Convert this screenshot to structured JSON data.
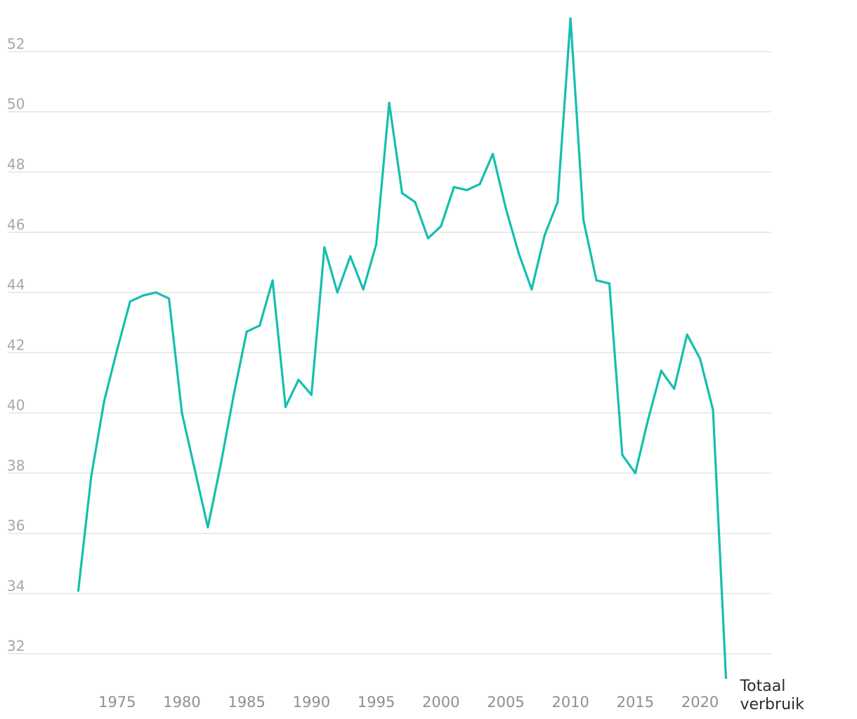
{
  "chart_data": {
    "type": "line",
    "title": "",
    "xlabel": "",
    "ylabel": "",
    "x": [
      1972,
      1973,
      1974,
      1975,
      1976,
      1977,
      1978,
      1979,
      1980,
      1981,
      1982,
      1983,
      1984,
      1985,
      1986,
      1987,
      1988,
      1989,
      1990,
      1991,
      1992,
      1993,
      1994,
      1995,
      1996,
      1997,
      1998,
      1999,
      2000,
      2001,
      2002,
      2003,
      2004,
      2005,
      2006,
      2007,
      2008,
      2009,
      2010,
      2011,
      2012,
      2013,
      2014,
      2015,
      2016,
      2017,
      2018,
      2019,
      2020,
      2021,
      2022
    ],
    "series": [
      {
        "name": "Totaal verbruik",
        "label_lines": [
          "Totaal",
          "verbruik"
        ],
        "color": "#14bfae",
        "values": [
          34.1,
          37.9,
          40.4,
          42.1,
          43.7,
          43.9,
          44.0,
          43.8,
          40.0,
          38.1,
          36.2,
          38.3,
          40.6,
          42.7,
          42.9,
          44.4,
          40.2,
          41.1,
          40.6,
          45.5,
          44.0,
          45.2,
          44.1,
          45.6,
          50.3,
          47.3,
          47.0,
          45.8,
          46.2,
          47.5,
          47.4,
          47.6,
          48.6,
          46.8,
          45.3,
          44.1,
          45.9,
          47.0,
          53.1,
          46.4,
          44.4,
          44.3,
          38.6,
          38.0,
          39.8,
          41.4,
          40.8,
          42.6,
          41.8,
          40.1,
          31.2
        ]
      }
    ],
    "ylim": [
      31,
      53.2
    ],
    "xlim": [
      1969.1,
      2025.5
    ],
    "yticks": [
      32,
      34,
      36,
      38,
      40,
      42,
      44,
      46,
      48,
      50,
      52
    ],
    "ytick_labels": [
      "32",
      "34",
      "36",
      "38",
      "40",
      "42",
      "44",
      "46",
      "48",
      "50",
      "52"
    ],
    "xticks": [
      1975,
      1980,
      1985,
      1990,
      1995,
      2000,
      2005,
      2010,
      2015,
      2020
    ],
    "xtick_labels": [
      "1975",
      "1980",
      "1985",
      "1990",
      "1995",
      "2000",
      "2005",
      "2010",
      "2015",
      "2020"
    ],
    "grid": true,
    "legend": "direct label at end of line",
    "colors": {
      "grid": "#e3e3e3",
      "ytick_text": "#a6a6a6",
      "xtick_text": "#8f8f8f",
      "label_text": "#2b2b2b"
    }
  }
}
